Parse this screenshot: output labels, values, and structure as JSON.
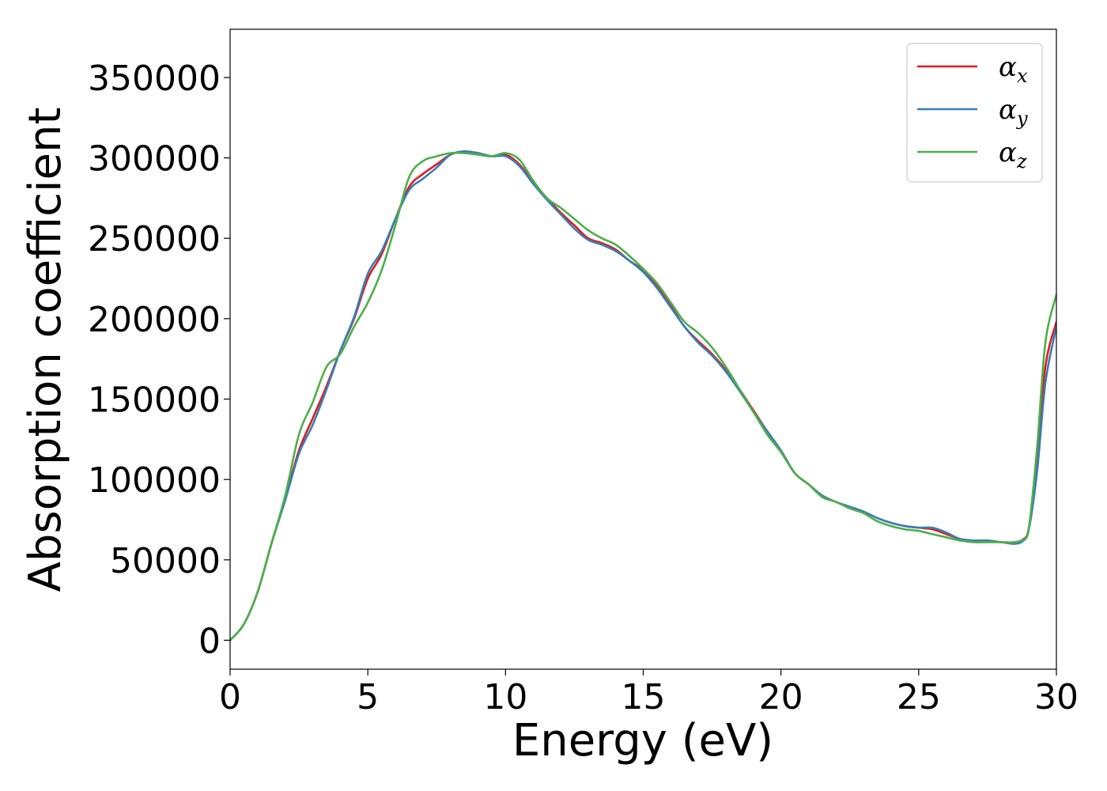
{
  "chart_data": {
    "type": "line",
    "xlabel": "Energy (eV)",
    "ylabel": "Absorption coefficient",
    "xlim": [
      0,
      30
    ],
    "ylim": [
      -18000,
      380000
    ],
    "xticks": [
      0,
      5,
      10,
      15,
      20,
      25,
      30
    ],
    "xtick_labels": [
      "0",
      "5",
      "10",
      "15",
      "20",
      "25",
      "30"
    ],
    "yticks": [
      0,
      50000,
      100000,
      150000,
      200000,
      250000,
      300000,
      350000
    ],
    "ytick_labels": [
      "0",
      "50000",
      "100000",
      "150000",
      "200000",
      "250000",
      "300000",
      "350000"
    ],
    "grid": false,
    "legend": {
      "placement": "top-right"
    },
    "series": [
      {
        "name": "α_x",
        "symbol": "α",
        "subscript": "x",
        "color": "#e41a1c",
        "x": [
          0,
          0.5,
          1,
          1.5,
          2,
          2.5,
          3,
          3.5,
          4,
          4.5,
          5,
          5.5,
          6,
          6.5,
          7,
          7.5,
          8,
          8.5,
          9,
          9.5,
          10,
          10.5,
          11,
          11.5,
          12,
          12.5,
          13,
          13.5,
          14,
          14.5,
          15,
          15.5,
          16,
          16.5,
          17,
          17.5,
          18,
          18.5,
          19,
          19.5,
          20,
          20.5,
          21,
          21.5,
          22,
          22.5,
          23,
          23.5,
          24,
          24.5,
          25,
          25.5,
          26,
          26.5,
          27,
          27.5,
          28,
          28.5,
          28.8,
          29,
          29.3,
          29.6,
          30
        ],
        "y": [
          0,
          10000,
          30000,
          60000,
          88000,
          118000,
          138000,
          158000,
          180000,
          200000,
          225000,
          240000,
          262000,
          282000,
          290000,
          296000,
          302000,
          304000,
          303000,
          301000,
          302000,
          296000,
          285000,
          275000,
          266000,
          258000,
          250000,
          247000,
          243000,
          236000,
          230000,
          220000,
          208000,
          195000,
          186000,
          178000,
          168000,
          156000,
          143000,
          130000,
          118000,
          104000,
          97000,
          90000,
          86000,
          83000,
          80000,
          76000,
          73000,
          71000,
          70000,
          69000,
          66000,
          63000,
          62000,
          62000,
          61000,
          61000,
          63000,
          70000,
          110000,
          170000,
          198000
        ]
      },
      {
        "name": "α_y",
        "symbol": "α",
        "subscript": "y",
        "color": "#377eb8",
        "x": [
          0,
          0.5,
          1,
          1.5,
          2,
          2.5,
          3,
          3.5,
          4,
          4.5,
          5,
          5.5,
          6,
          6.5,
          7,
          7.5,
          8,
          8.5,
          9,
          9.5,
          10,
          10.5,
          11,
          11.5,
          12,
          12.5,
          13,
          13.5,
          14,
          14.5,
          15,
          15.5,
          16,
          16.5,
          17,
          17.5,
          18,
          18.5,
          19,
          19.5,
          20,
          20.5,
          21,
          21.5,
          22,
          22.5,
          23,
          23.5,
          24,
          24.5,
          25,
          25.5,
          26,
          26.5,
          27,
          27.5,
          28,
          28.5,
          28.8,
          29,
          29.3,
          29.6,
          30
        ],
        "y": [
          0,
          10000,
          30000,
          60000,
          87000,
          116000,
          134000,
          156000,
          180000,
          201000,
          228000,
          242000,
          262000,
          280000,
          287000,
          294000,
          302000,
          304000,
          303000,
          301000,
          301000,
          295000,
          284000,
          274000,
          265000,
          256000,
          249000,
          246000,
          242000,
          236000,
          229000,
          219000,
          207000,
          195000,
          185000,
          177000,
          167000,
          155000,
          142000,
          130000,
          118000,
          104000,
          97000,
          90000,
          86000,
          83000,
          80000,
          76000,
          73000,
          71000,
          70000,
          70000,
          67000,
          63000,
          62000,
          62000,
          61000,
          60000,
          62000,
          69000,
          105000,
          160000,
          195000
        ]
      },
      {
        "name": "α_z",
        "symbol": "α",
        "subscript": "z",
        "color": "#4daf4a",
        "x": [
          0,
          0.5,
          1,
          1.5,
          2,
          2.5,
          3,
          3.5,
          4,
          4.5,
          5,
          5.5,
          6,
          6.5,
          7,
          7.5,
          8,
          8.5,
          9,
          9.5,
          10,
          10.5,
          11,
          11.5,
          12,
          12.5,
          13,
          13.5,
          14,
          14.5,
          15,
          15.5,
          16,
          16.5,
          17,
          17.5,
          18,
          18.5,
          19,
          19.5,
          20,
          20.5,
          21,
          21.5,
          22,
          22.5,
          23,
          23.5,
          24,
          24.5,
          25,
          25.5,
          26,
          26.5,
          27,
          27.5,
          28,
          28.5,
          28.8,
          29,
          29.3,
          29.6,
          30
        ],
        "y": [
          0,
          10000,
          30000,
          60000,
          90000,
          128000,
          148000,
          170000,
          178000,
          195000,
          210000,
          230000,
          258000,
          288000,
          298000,
          301000,
          303000,
          303000,
          302000,
          301000,
          303000,
          299000,
          286000,
          275000,
          269000,
          262000,
          255000,
          250000,
          246000,
          239000,
          231000,
          222000,
          210000,
          198000,
          191000,
          182000,
          170000,
          156000,
          142000,
          128000,
          117000,
          104000,
          97000,
          89000,
          86000,
          82000,
          79000,
          74000,
          71000,
          69000,
          68000,
          66000,
          64000,
          62000,
          61000,
          61000,
          61000,
          61000,
          63000,
          70000,
          120000,
          185000,
          215000
        ]
      }
    ]
  }
}
